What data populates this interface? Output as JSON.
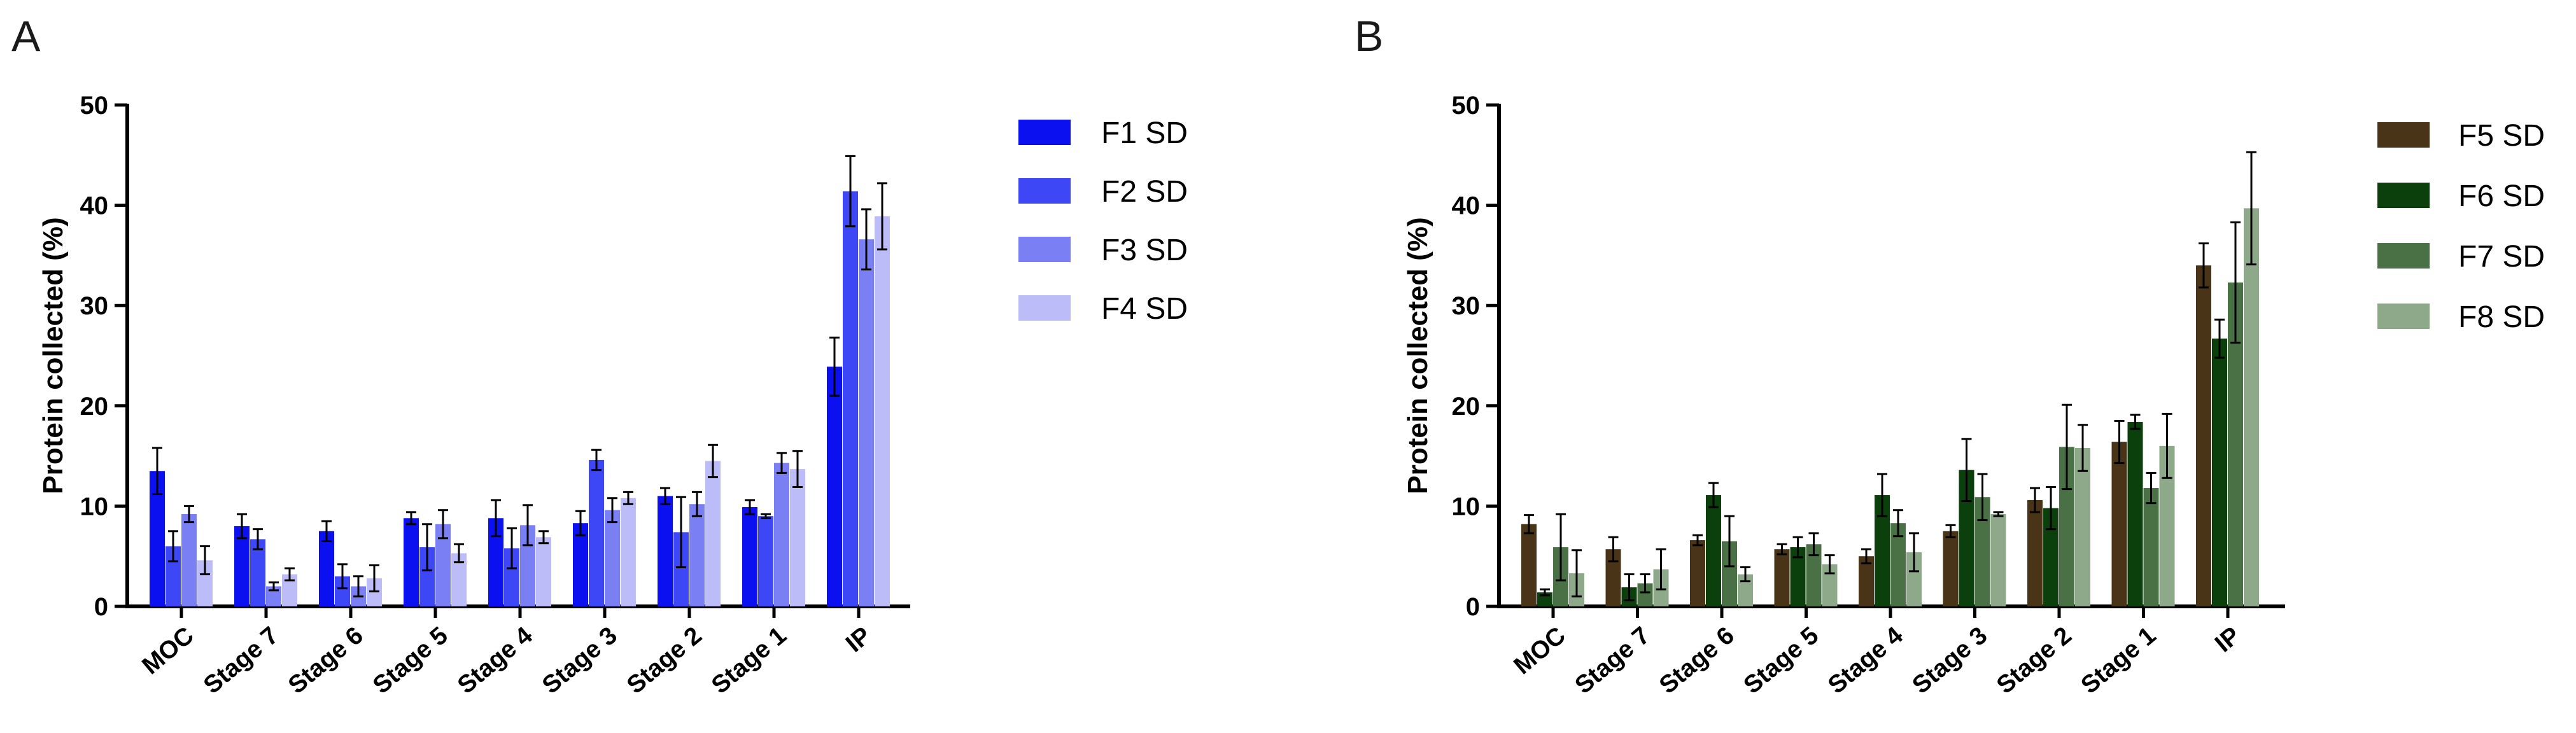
{
  "chart_data": [
    {
      "panel_label": "A",
      "type": "bar",
      "title": "",
      "xlabel": "",
      "ylabel": "Protein collected (%)",
      "ylim": [
        0,
        50
      ],
      "yticks": [
        "0",
        "10",
        "20",
        "30",
        "40",
        "50"
      ],
      "grid": false,
      "legend_position": "right",
      "categories": [
        "MOC",
        "Stage 7",
        "Stage 6",
        "Stage 5",
        "Stage 4",
        "Stage 3",
        "Stage 2",
        "Stage 1",
        "IP"
      ],
      "series": [
        {
          "name": "F1 SD",
          "color": "#0a10f0",
          "values": [
            13.5,
            8.0,
            7.5,
            8.8,
            8.8,
            8.3,
            11.0,
            9.9,
            23.9
          ],
          "errors": [
            2.3,
            1.2,
            1.0,
            0.6,
            1.8,
            1.2,
            0.8,
            0.7,
            2.9
          ]
        },
        {
          "name": "F2 SD",
          "color": "#3d47f5",
          "values": [
            6.0,
            6.7,
            3.0,
            5.9,
            5.8,
            14.6,
            7.4,
            9.0,
            41.4
          ],
          "errors": [
            1.5,
            1.0,
            1.2,
            2.3,
            2.0,
            1.0,
            3.5,
            0.2,
            3.5
          ]
        },
        {
          "name": "F3 SD",
          "color": "#7a7ff3",
          "values": [
            9.2,
            2.0,
            2.0,
            8.2,
            8.1,
            9.6,
            10.2,
            14.3,
            36.6
          ],
          "errors": [
            0.8,
            0.4,
            1.0,
            1.4,
            2.0,
            1.2,
            1.2,
            1.0,
            3.0
          ]
        },
        {
          "name": "F4 SD",
          "color": "#bcbdf8",
          "values": [
            4.6,
            3.2,
            2.8,
            5.3,
            6.9,
            10.8,
            14.5,
            13.7,
            38.9
          ],
          "errors": [
            1.4,
            0.6,
            1.3,
            0.9,
            0.6,
            0.6,
            1.6,
            1.8,
            3.3
          ]
        }
      ]
    },
    {
      "panel_label": "B",
      "type": "bar",
      "title": "",
      "xlabel": "",
      "ylabel": "Protein collected (%)",
      "ylim": [
        0,
        50
      ],
      "yticks": [
        "0",
        "10",
        "20",
        "30",
        "40",
        "50"
      ],
      "grid": false,
      "legend_position": "right",
      "categories": [
        "MOC",
        "Stage 7",
        "Stage 6",
        "Stage 5",
        "Stage 4",
        "Stage 3",
        "Stage 2",
        "Stage 1",
        "IP"
      ],
      "series": [
        {
          "name": "F5 SD",
          "color": "#4a3417",
          "values": [
            8.2,
            5.7,
            6.6,
            5.7,
            5.0,
            7.5,
            10.6,
            16.4,
            34.0
          ],
          "errors": [
            0.9,
            1.2,
            0.5,
            0.5,
            0.7,
            0.6,
            1.2,
            2.1,
            2.2
          ]
        },
        {
          "name": "F6 SD",
          "color": "#0b3f0b",
          "values": [
            1.4,
            1.9,
            11.1,
            5.9,
            11.1,
            13.6,
            9.8,
            18.4,
            26.7
          ],
          "errors": [
            0.3,
            1.3,
            1.2,
            1.0,
            2.1,
            3.1,
            2.1,
            0.7,
            1.9
          ]
        },
        {
          "name": "F7 SD",
          "color": "#4a7045",
          "values": [
            5.9,
            2.3,
            6.5,
            6.2,
            8.3,
            10.9,
            15.9,
            11.8,
            32.3
          ],
          "errors": [
            3.3,
            0.9,
            2.5,
            1.1,
            1.3,
            2.3,
            4.2,
            1.5,
            6.0
          ]
        },
        {
          "name": "F8 SD",
          "color": "#8ea88a",
          "values": [
            3.3,
            3.7,
            3.2,
            4.2,
            5.4,
            9.2,
            15.8,
            16.0,
            39.7
          ],
          "errors": [
            2.3,
            2.0,
            0.7,
            0.9,
            1.9,
            0.2,
            2.3,
            3.2,
            5.6
          ]
        }
      ]
    }
  ]
}
